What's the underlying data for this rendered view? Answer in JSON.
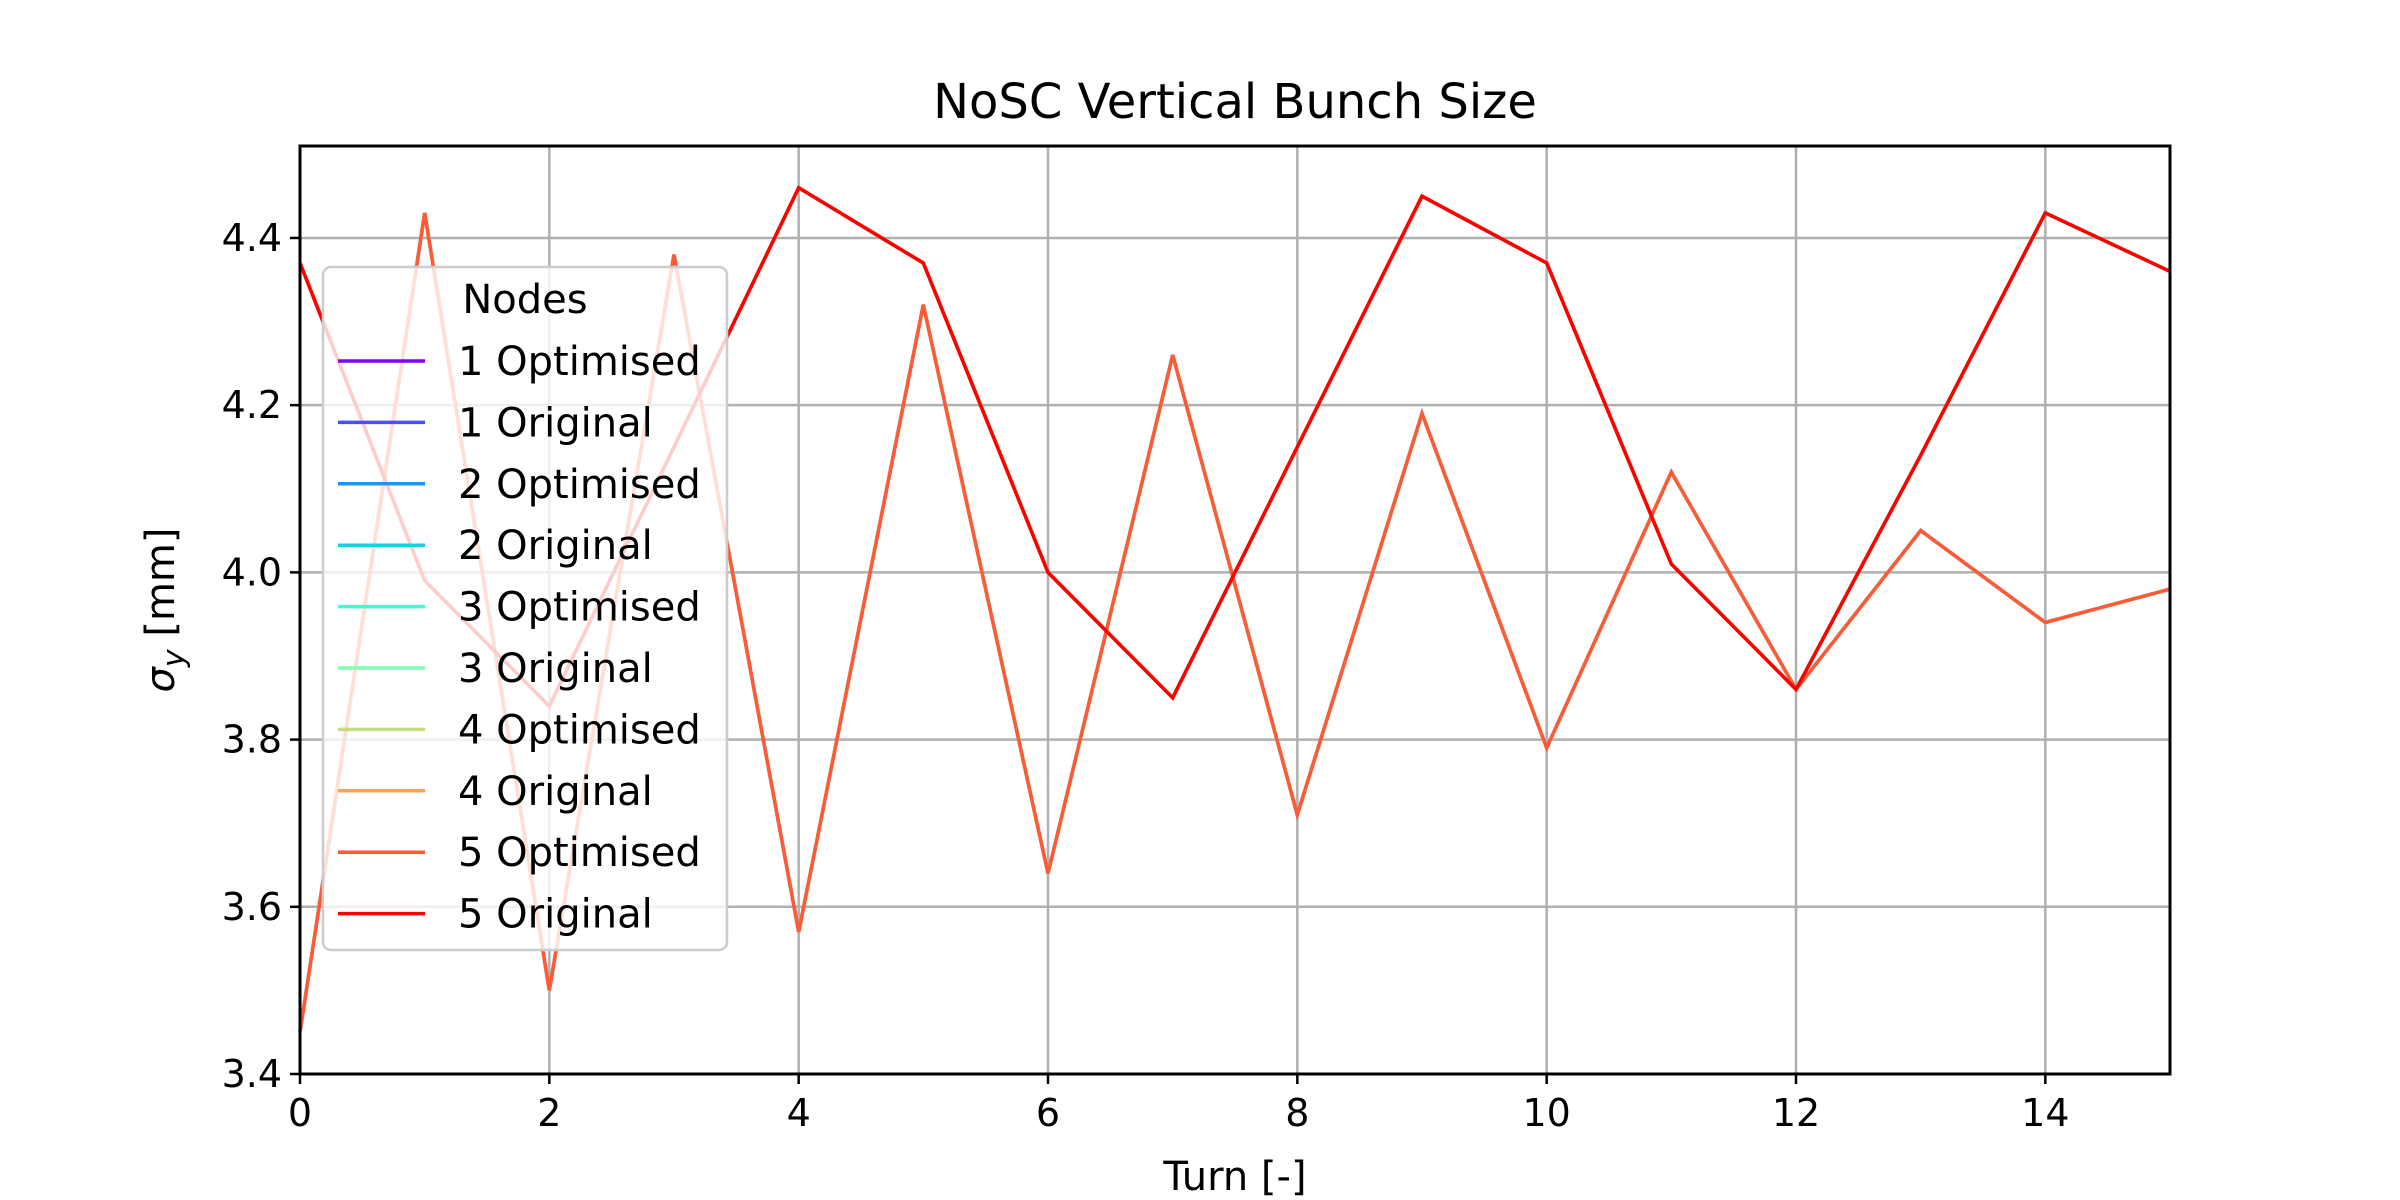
{
  "chart_data": {
    "type": "line",
    "title": "NoSC Vertical Bunch Size",
    "xlabel": "Turn [-]",
    "ylabel": "σy [mm]",
    "ylabel_main": "σ",
    "ylabel_sub": "y",
    "ylabel_unit": " [mm]",
    "xlim": [
      0,
      15
    ],
    "ylim": [
      3.4,
      4.51
    ],
    "xticks": [
      0,
      2,
      4,
      6,
      8,
      10,
      12,
      14
    ],
    "yticks": [
      3.4,
      3.6,
      3.8,
      4.0,
      4.2,
      4.4
    ],
    "ytick_labels": [
      "3.4",
      "3.6",
      "3.8",
      "4.0",
      "4.2",
      "4.4"
    ],
    "grid": true,
    "legend": {
      "title": "Nodes",
      "placement": "center-left"
    },
    "x": [
      0,
      1,
      2,
      3,
      4,
      5,
      6,
      7,
      8,
      9,
      10,
      11,
      12,
      13,
      14,
      15
    ],
    "series": [
      {
        "name": "1 Optimised",
        "color": "#8000ff",
        "values": [
          3.45,
          4.43,
          3.5,
          4.38,
          3.57,
          4.32,
          3.64,
          4.26,
          3.71,
          4.19,
          3.79,
          4.12,
          3.86,
          4.05,
          3.94,
          3.98
        ]
      },
      {
        "name": "1 Original",
        "color": "#4a50f9",
        "values": [
          4.37,
          3.99,
          3.84,
          4.15,
          4.46,
          4.37,
          4.0,
          3.85,
          4.15,
          4.45,
          4.37,
          4.01,
          3.86,
          4.14,
          4.43,
          4.36
        ]
      },
      {
        "name": "2 Optimised",
        "color": "#1996f3",
        "values": [
          3.45,
          4.43,
          3.5,
          4.38,
          3.57,
          4.32,
          3.64,
          4.26,
          3.71,
          4.19,
          3.79,
          4.12,
          3.86,
          4.05,
          3.94,
          3.98
        ]
      },
      {
        "name": "2 Original",
        "color": "#1cd0e0",
        "values": [
          4.37,
          3.99,
          3.84,
          4.15,
          4.46,
          4.37,
          4.0,
          3.85,
          4.15,
          4.45,
          4.37,
          4.01,
          3.86,
          4.14,
          4.43,
          4.36
        ]
      },
      {
        "name": "3 Optimised",
        "color": "#4df3ce",
        "values": [
          3.45,
          4.43,
          3.5,
          4.38,
          3.57,
          4.32,
          3.64,
          4.26,
          3.71,
          4.19,
          3.79,
          4.12,
          3.86,
          4.05,
          3.94,
          3.98
        ]
      },
      {
        "name": "3 Original",
        "color": "#81ffb4",
        "values": [
          4.37,
          3.99,
          3.84,
          4.15,
          4.46,
          4.37,
          4.0,
          3.85,
          4.15,
          4.45,
          4.37,
          4.01,
          3.86,
          4.14,
          4.43,
          4.36
        ]
      },
      {
        "name": "4 Optimised",
        "color": "#c7dc80",
        "values": [
          3.45,
          4.43,
          3.5,
          4.38,
          3.57,
          4.32,
          3.64,
          4.26,
          3.71,
          4.19,
          3.79,
          4.12,
          3.86,
          4.05,
          3.94,
          3.98
        ]
      },
      {
        "name": "4 Original",
        "color": "#ffa256",
        "values": [
          4.37,
          3.99,
          3.84,
          4.15,
          4.46,
          4.37,
          4.0,
          3.85,
          4.15,
          4.45,
          4.37,
          4.01,
          3.86,
          4.14,
          4.43,
          4.36
        ]
      },
      {
        "name": "5 Optimised",
        "color": "#ff5a35",
        "values": [
          3.45,
          4.43,
          3.5,
          4.38,
          3.57,
          4.32,
          3.64,
          4.26,
          3.71,
          4.19,
          3.79,
          4.12,
          3.86,
          4.05,
          3.94,
          3.98
        ]
      },
      {
        "name": "5 Original",
        "color": "#ff0000",
        "values": [
          4.37,
          3.99,
          3.84,
          4.15,
          4.46,
          4.37,
          4.0,
          3.85,
          4.15,
          4.45,
          4.37,
          4.01,
          3.86,
          4.14,
          4.43,
          4.36
        ]
      }
    ]
  }
}
